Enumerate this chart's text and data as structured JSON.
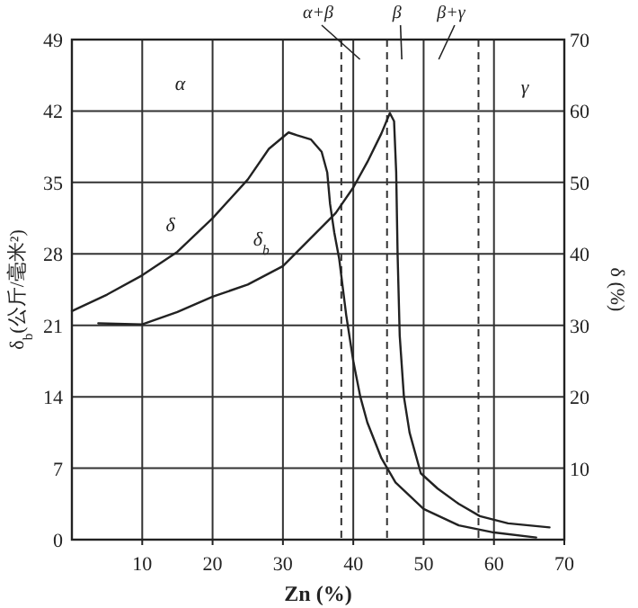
{
  "chart_data": {
    "type": "line",
    "xlabel": "Zn (%)",
    "ylabel": "δ$_{b}$(公斤/毫米²)",
    "y2label": "δ (%)",
    "xlim": [
      0,
      70
    ],
    "xticks": [
      10,
      20,
      30,
      40,
      50,
      60,
      70
    ],
    "ylim": [
      0,
      49
    ],
    "yticks": [
      0,
      7,
      14,
      21,
      28,
      35,
      42,
      49
    ],
    "y2lim": [
      0,
      70
    ],
    "y2ticks": [
      10,
      20,
      30,
      40,
      50,
      60,
      70
    ],
    "grid": true,
    "series": [
      {
        "name": "δ",
        "color": "#222222",
        "axis": "y2",
        "x": [
          0,
          5,
          10,
          15,
          20,
          25,
          28,
          30.8,
          32,
          34,
          35.5,
          36.3,
          36.7,
          37.3,
          38,
          39,
          40,
          41,
          42,
          44,
          46,
          50,
          55,
          60,
          66
        ],
        "values": [
          32,
          34.3,
          37,
          40.3,
          45,
          50.4,
          54.7,
          57,
          56.6,
          56,
          54.3,
          51.4,
          47,
          43,
          39.3,
          31.4,
          25,
          20,
          16.4,
          11.4,
          8,
          4.3,
          2,
          1,
          0.3
        ]
      },
      {
        "name": "δ$_{b}$",
        "color": "#222222",
        "x": [
          3.75,
          10,
          15,
          20,
          25,
          30,
          33.75,
          37.5,
          40,
          42,
          44,
          45.2,
          45.8,
          46.1,
          46.3,
          46.6,
          47.2,
          48,
          49.6,
          52,
          55,
          58,
          62,
          67.9
        ],
        "values": [
          21.2,
          21.1,
          22.3,
          23.8,
          25,
          26.8,
          29.4,
          32,
          34.5,
          37,
          39.8,
          41.8,
          41,
          36,
          28,
          20,
          14,
          10.5,
          6.5,
          5,
          3.5,
          2.3,
          1.6,
          1.2
        ]
      }
    ],
    "ref_lines": [
      {
        "axis": "x",
        "value": 38.3,
        "line_style": "dashed"
      },
      {
        "axis": "x",
        "value": 44.8,
        "line_style": "dashed"
      },
      {
        "axis": "x",
        "value": 57.8,
        "line_style": "dashed"
      }
    ],
    "annotations": [
      "α",
      "α+β",
      "β",
      "β+γ",
      "γ"
    ]
  }
}
